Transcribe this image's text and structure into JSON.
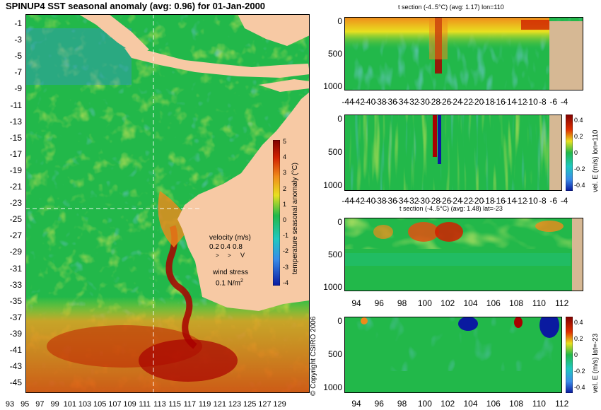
{
  "title": "SPINUP4 SST seasonal anomaly (avg: 0.96) for 01-Jan-2000",
  "copyright": "© Copyright CSIRO 2006",
  "colors": {
    "ocean_green": "#22b84a",
    "land": "#f7c9a4",
    "land_section": "#d6b894",
    "warm_red": "#a80000",
    "orange": "#f08a1a",
    "yellow": "#e8e020",
    "cool_blue": "#3a8ce8",
    "deep_blue": "#0a1aa0",
    "arrow_magenta": "#d030d0"
  },
  "chart_data": [
    {
      "type": "heatmap",
      "title": "SPINUP4 SST seasonal anomaly (avg: 0.96) for 01-Jan-2000",
      "x_tick_labels": [
        "93",
        "95",
        "97",
        "99",
        "101",
        "103",
        "105",
        "107",
        "109",
        "111",
        "113",
        "115",
        "117",
        "119",
        "121",
        "123",
        "125",
        "127",
        "129"
      ],
      "y_tick_labels": [
        "-1",
        "-3",
        "-5",
        "-7",
        "-9",
        "-11",
        "-13",
        "-15",
        "-17",
        "-19",
        "-21",
        "-23",
        "-25",
        "-27",
        "-29",
        "-31",
        "-33",
        "-35",
        "-37",
        "-39",
        "-41",
        "-43",
        "-45"
      ],
      "xlim": [
        93,
        130
      ],
      "ylim": [
        -45,
        1
      ],
      "crosshair": {
        "lon": 110,
        "lat": -23
      },
      "colorbar": {
        "label": "temperature seasonal anomaly (°C)",
        "ticks": [
          "5",
          "4",
          "3",
          "2",
          "1",
          "0",
          "-1",
          "-2",
          "-3",
          "-4"
        ],
        "range": [
          -4,
          5
        ]
      },
      "velocity_legend": {
        "label": "velocity (m/s)",
        "values": [
          "0.2",
          "0.4",
          "0.8"
        ],
        "arrows": [
          ">",
          ">",
          "V"
        ]
      },
      "wind_legend": {
        "label": "wind stress",
        "value": "0.1 N/m",
        "superscript": "2"
      }
    },
    {
      "type": "heatmap",
      "title": "t section (-4..5°C) (avg: 1.17) lon=110",
      "x_tick_labels": [
        "-44",
        "-42",
        "-40",
        "-38",
        "-36",
        "-34",
        "-32",
        "-30",
        "-28",
        "-26",
        "-24",
        "-22",
        "-20",
        "-18",
        "-16",
        "-14",
        "-12",
        "-10",
        "-8",
        "-6",
        "-4"
      ],
      "y_tick_labels": [
        "0",
        "500",
        "1000"
      ],
      "xlim": [
        -45,
        0
      ],
      "ylim": [
        1050,
        0
      ]
    },
    {
      "type": "heatmap",
      "title": "",
      "x_tick_labels": [
        "-44",
        "-42",
        "-40",
        "-38",
        "-36",
        "-34",
        "-32",
        "-30",
        "-28",
        "-26",
        "-24",
        "-22",
        "-20",
        "-18",
        "-16",
        "-14",
        "-12",
        "-10",
        "-8",
        "-6",
        "-4"
      ],
      "y_tick_labels": [
        "0",
        "500",
        "1000"
      ],
      "xlim": [
        -45,
        0
      ],
      "ylim": [
        1050,
        0
      ],
      "colorbar": {
        "label": "vel. E (m/s) lon=110",
        "ticks": [
          "0.4",
          "0.2",
          "0",
          "-0.2",
          "-0.4"
        ],
        "range": [
          -0.4,
          0.4
        ]
      }
    },
    {
      "type": "heatmap",
      "title": "t section (-4..5°C) (avg: 1.48) lat=-23",
      "x_tick_labels": [
        "94",
        "96",
        "98",
        "100",
        "102",
        "104",
        "106",
        "108",
        "110",
        "112"
      ],
      "y_tick_labels": [
        "0",
        "500",
        "1000"
      ],
      "xlim": [
        93,
        113.5
      ],
      "ylim": [
        1050,
        0
      ]
    },
    {
      "type": "heatmap",
      "title": "",
      "x_tick_labels": [
        "94",
        "96",
        "98",
        "100",
        "102",
        "104",
        "106",
        "108",
        "110",
        "112"
      ],
      "y_tick_labels": [
        "0",
        "500",
        "1000"
      ],
      "xlim": [
        93,
        113.5
      ],
      "ylim": [
        1050,
        0
      ],
      "colorbar": {
        "label": "vel. E (m/s) lat=-23",
        "ticks": [
          "0.4",
          "0.2",
          "0",
          "-0.2",
          "-0.4"
        ],
        "range": [
          -0.4,
          0.4
        ]
      }
    }
  ]
}
